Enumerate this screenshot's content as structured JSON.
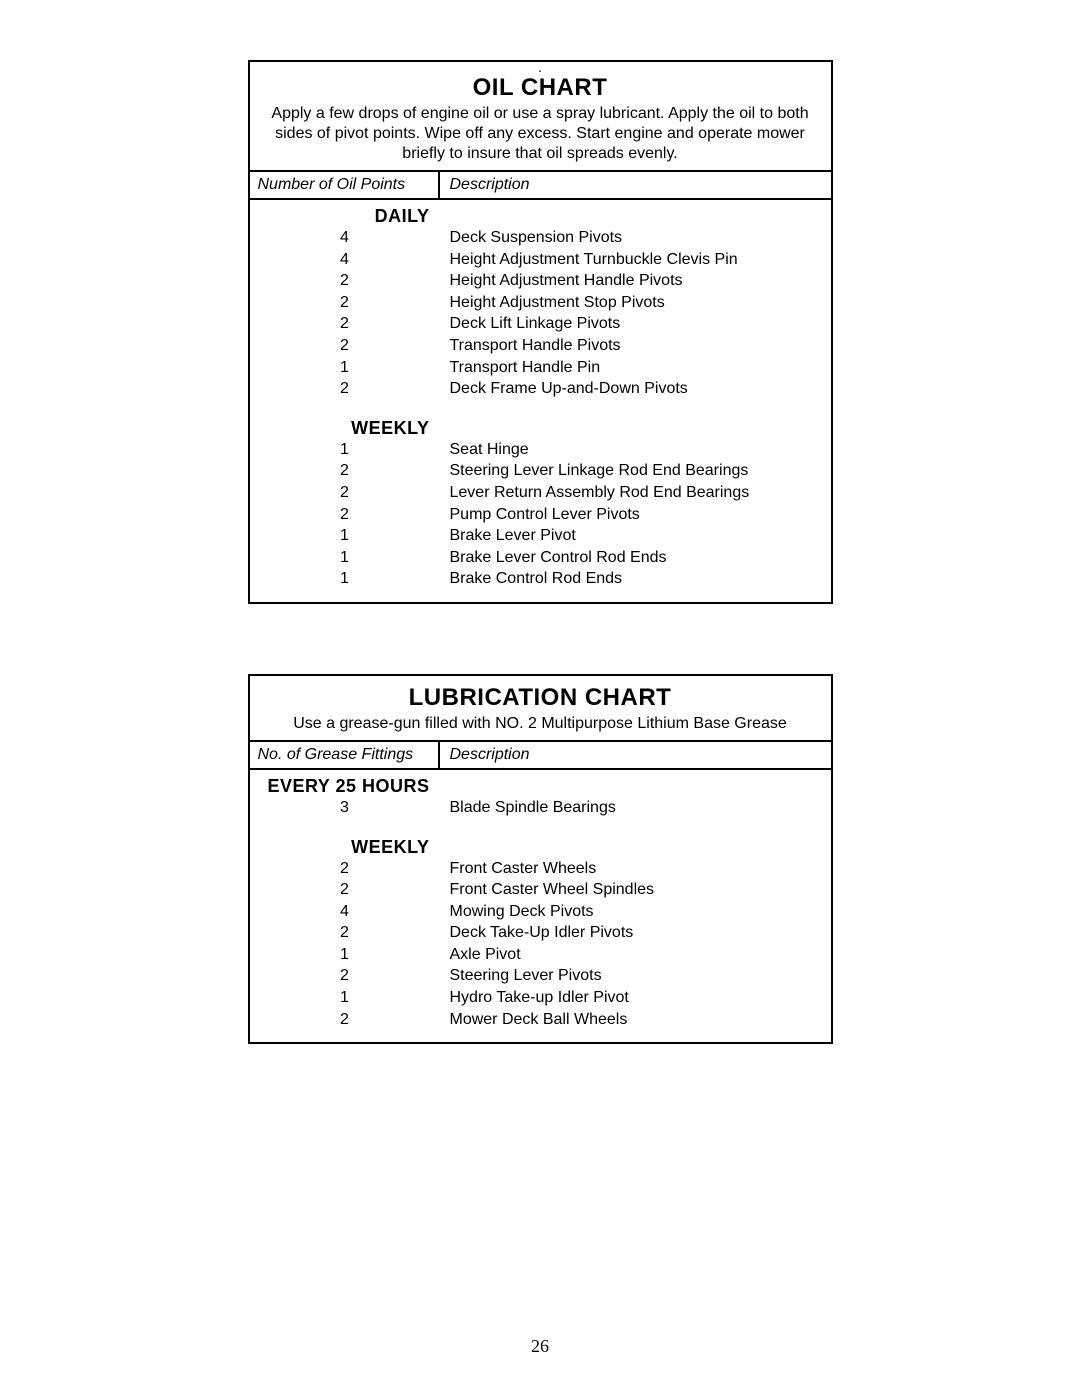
{
  "page_number": "26",
  "oil_chart": {
    "dot": ".",
    "title": "Oil Chart",
    "subtitle": "Apply a few drops of engine oil or use a spray lubricant. Apply the oil to both sides of pivot points. Wipe off any excess. Start engine and operate mower briefly to insure that oil spreads evenly.",
    "col_left": "Number of Oil Points",
    "col_right": "Description",
    "sections": [
      {
        "label": "Daily",
        "rows": [
          {
            "n": "4",
            "d": "Deck Suspension Pivots"
          },
          {
            "n": "4",
            "d": "Height Adjustment Turnbuckle Clevis Pin"
          },
          {
            "n": "2",
            "d": "Height Adjustment Handle Pivots"
          },
          {
            "n": "2",
            "d": "Height Adjustment Stop Pivots"
          },
          {
            "n": "2",
            "d": "Deck Lift Linkage Pivots"
          },
          {
            "n": "2",
            "d": "Transport Handle Pivots"
          },
          {
            "n": "1",
            "d": "Transport Handle Pin"
          },
          {
            "n": "2",
            "d": "Deck Frame Up-and-Down Pivots"
          }
        ]
      },
      {
        "label": "Weekly",
        "rows": [
          {
            "n": "1",
            "d": "Seat Hinge"
          },
          {
            "n": "2",
            "d": "Steering Lever Linkage Rod End Bearings"
          },
          {
            "n": "2",
            "d": "Lever Return Assembly Rod End Bearings"
          },
          {
            "n": "2",
            "d": "Pump Control Lever Pivots"
          },
          {
            "n": "1",
            "d": "Brake Lever Pivot"
          },
          {
            "n": "1",
            "d": "Brake Lever Control Rod Ends"
          },
          {
            "n": "1",
            "d": "Brake Control Rod Ends"
          }
        ]
      }
    ]
  },
  "lube_chart": {
    "title": "Lubrication Chart",
    "subtitle": "Use a grease-gun filled with NO. 2 Multipurpose Lithium Base Grease",
    "col_left": "No. of Grease Fittings",
    "col_right": "Description",
    "sections": [
      {
        "label": "Every 25 Hours",
        "rows": [
          {
            "n": "3",
            "d": "Blade Spindle Bearings"
          }
        ]
      },
      {
        "label": "Weekly",
        "rows": [
          {
            "n": "2",
            "d": "Front Caster Wheels"
          },
          {
            "n": "2",
            "d": "Front Caster Wheel Spindles"
          },
          {
            "n": "4",
            "d": "Mowing Deck Pivots"
          },
          {
            "n": "2",
            "d": "Deck Take-Up Idler Pivots"
          },
          {
            "n": "1",
            "d": "Axle Pivot"
          },
          {
            "n": "2",
            "d": "Steering Lever Pivots"
          },
          {
            "n": "1",
            "d": "Hydro Take-up Idler Pivot"
          },
          {
            "n": "2",
            "d": "Mower Deck Ball Wheels"
          }
        ]
      }
    ]
  }
}
